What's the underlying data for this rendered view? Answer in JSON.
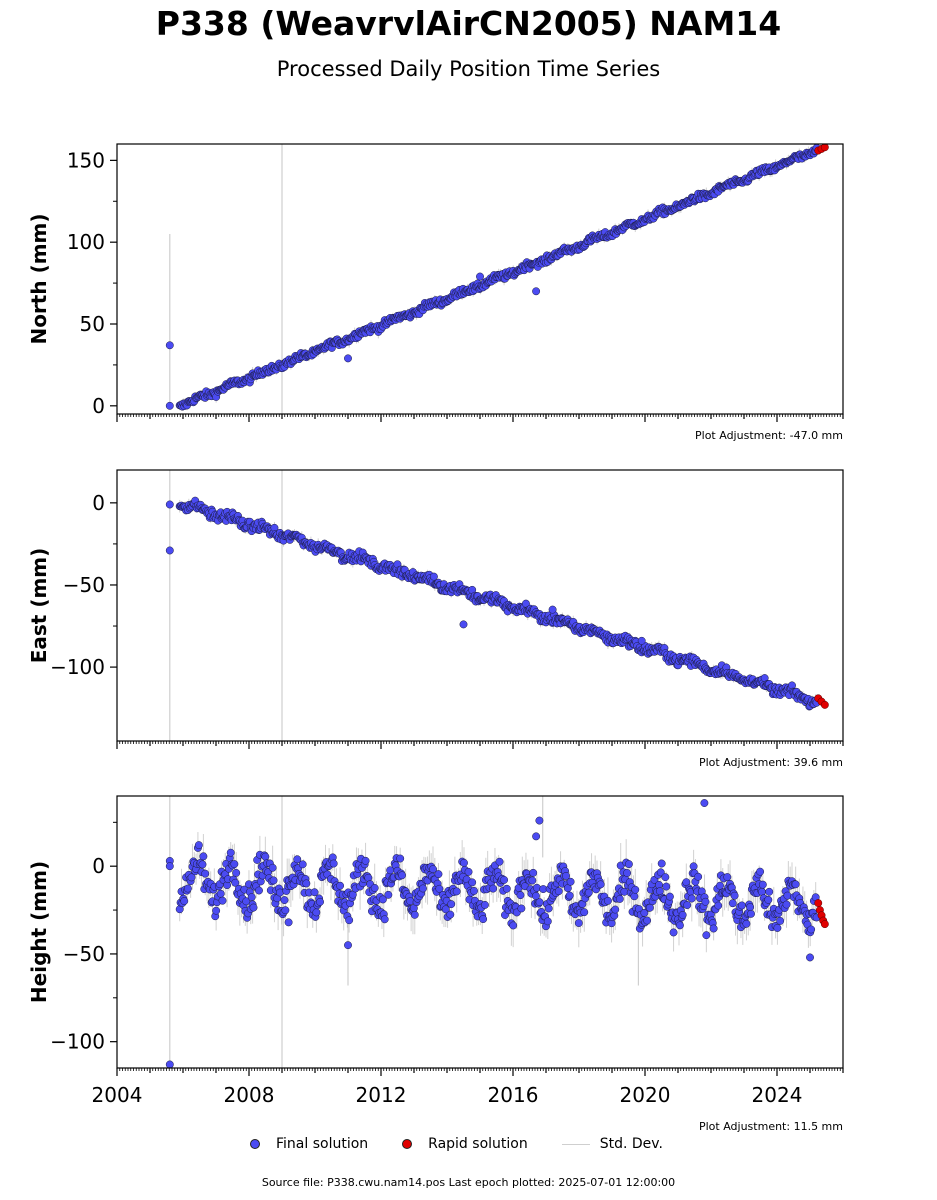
{
  "title": "P338 (WeavrvlAirCN2005) NAM14",
  "subtitle": "Processed Daily Position Time Series",
  "footer": "Source file: P338.cwu.nam14.pos  Last epoch plotted: 2025-07-01 12:00:00",
  "legend": {
    "final": "Final solution",
    "rapid": "Rapid solution",
    "stddev": "Std. Dev."
  },
  "colors": {
    "final": "#4b4bf2",
    "rapid": "#e00000",
    "stddev": "#cfcfcf"
  },
  "chart_data": [
    {
      "type": "scatter",
      "ylabel": "North (mm)",
      "adjustment": "Plot Adjustment: -47.0 mm",
      "xlim": [
        2004,
        2026
      ],
      "ylim": [
        -5,
        160
      ],
      "yticks": [
        0,
        50,
        100,
        150
      ],
      "xticks": [
        2004,
        2008,
        2012,
        2016,
        2020,
        2024
      ],
      "final": {
        "start": 2005.9,
        "end": 2025.2,
        "y0": 0,
        "y1": 156,
        "noise": 1.5,
        "seasonal": 0.8
      },
      "rapid": {
        "x": [
          2025.25,
          2025.35,
          2025.45
        ],
        "y": [
          156,
          157,
          158
        ]
      },
      "outliers": [
        [
          2005.6,
          37
        ],
        [
          2005.6,
          0
        ],
        [
          2011.0,
          29
        ],
        [
          2015.0,
          79
        ],
        [
          2016.7,
          70
        ]
      ],
      "errorbars": [
        [
          2005.6,
          0,
          105
        ],
        [
          2009.0,
          -5,
          160
        ]
      ]
    },
    {
      "type": "scatter",
      "ylabel": "East (mm)",
      "adjustment": "Plot Adjustment: 39.6 mm",
      "xlim": [
        2004,
        2026
      ],
      "ylim": [
        -145,
        20
      ],
      "yticks": [
        -100,
        -50,
        0
      ],
      "xticks": [
        2004,
        2008,
        2012,
        2016,
        2020,
        2024
      ],
      "final": {
        "start": 2005.9,
        "end": 2025.2,
        "y0": 0,
        "y1": -121,
        "noise": 2,
        "seasonal": 1.5
      },
      "rapid": {
        "x": [
          2025.25,
          2025.35,
          2025.45
        ],
        "y": [
          -119,
          -121,
          -123
        ]
      },
      "outliers": [
        [
          2005.6,
          -29
        ],
        [
          2005.6,
          -1
        ],
        [
          2014.5,
          -74
        ],
        [
          2019.9,
          -84
        ],
        [
          2017.2,
          -65
        ]
      ],
      "errorbars": [
        [
          2005.6,
          -145,
          20
        ],
        [
          2009.0,
          -145,
          20
        ]
      ]
    },
    {
      "type": "scatter",
      "ylabel": "Height (mm)",
      "adjustment": "Plot Adjustment: 11.5 mm",
      "xlabel": "",
      "xlim": [
        2004,
        2026
      ],
      "ylim": [
        -115,
        40
      ],
      "yticks": [
        -100,
        -50,
        0
      ],
      "xticks": [
        2004,
        2008,
        2012,
        2016,
        2020,
        2024
      ],
      "xticklabels": [
        "2004",
        "2008",
        "2012",
        "2016",
        "2020",
        "2024"
      ],
      "final": {
        "start": 2005.9,
        "end": 2025.2,
        "y0": -8,
        "y1": -22,
        "noise": 7,
        "seasonal": 11
      },
      "rapid": {
        "x": [
          2025.25,
          2025.3,
          2025.35,
          2025.4,
          2025.45
        ],
        "y": [
          -21,
          -25,
          -28,
          -31,
          -33
        ]
      },
      "outliers": [
        [
          2005.6,
          -113
        ],
        [
          2005.6,
          3
        ],
        [
          2005.6,
          0
        ],
        [
          2011.0,
          -45
        ],
        [
          2016.8,
          26
        ],
        [
          2016.7,
          17
        ],
        [
          2021.8,
          36
        ],
        [
          2025.0,
          -52
        ],
        [
          2009.2,
          -32
        ]
      ],
      "errorbars": [
        [
          2005.6,
          -115,
          40
        ],
        [
          2009.0,
          -115,
          40
        ],
        [
          2011.0,
          -68,
          -24
        ],
        [
          2019.8,
          -68,
          -22
        ],
        [
          2016.9,
          5,
          40
        ]
      ]
    }
  ]
}
